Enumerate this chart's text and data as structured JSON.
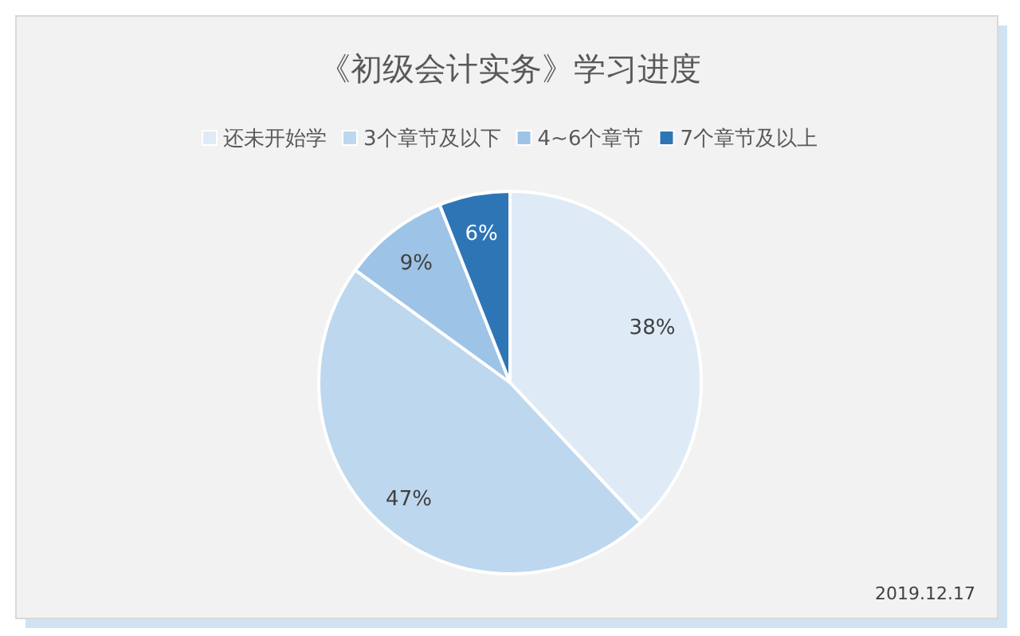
{
  "chart_data": {
    "type": "pie",
    "title": "《初级会计实务》学习进度",
    "categories": [
      "还未开始学",
      "3个章节及以下",
      "4~6个章节",
      "7个章节及以上"
    ],
    "values": [
      38,
      47,
      9,
      6
    ],
    "value_labels": [
      "38%",
      "47%",
      "9%",
      "6%"
    ],
    "colors": [
      "#deebf7",
      "#bdd7ee",
      "#9dc3e6",
      "#2e75b6"
    ],
    "legend": "top",
    "annotations": [
      "2019.12.17"
    ]
  }
}
